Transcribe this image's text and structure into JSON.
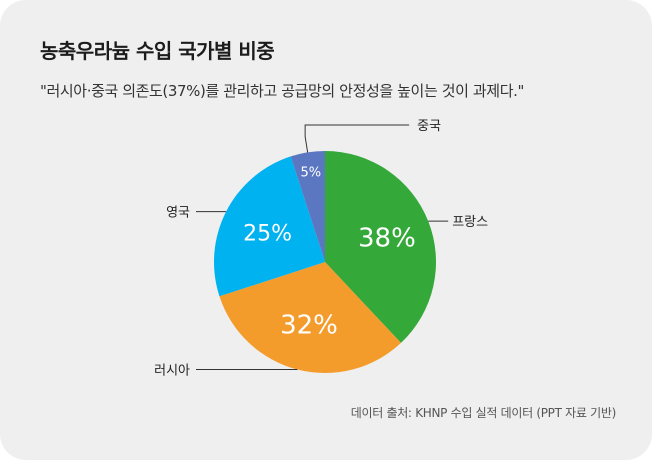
{
  "title": "농축우라늄 수입 국가별 비중",
  "subtitle": "\"러시아·중국 의존도(37%)를 관리하고 공급망의 안정성을 높이는 것이 과제다.\"",
  "source": "데이터 출처: KHNP 수입 실적 데이터 (PPT 자료 기반)",
  "chart_data": {
    "type": "pie",
    "title": "농축우라늄 수입 국가별 비중",
    "slices": [
      {
        "label": "프랑스",
        "value": 38,
        "display": "38%",
        "color": "#35a83a"
      },
      {
        "label": "러시아",
        "value": 32,
        "display": "32%",
        "color": "#f39c2c"
      },
      {
        "label": "영국",
        "value": 25,
        "display": "25%",
        "color": "#00b2ef"
      },
      {
        "label": "중국",
        "value": 5,
        "display": "5%",
        "color": "#5b77c2"
      }
    ]
  }
}
